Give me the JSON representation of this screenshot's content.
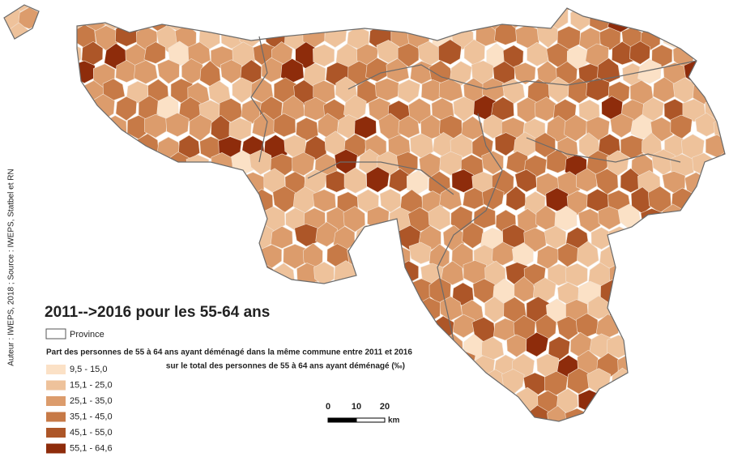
{
  "title": "2011-->2016 pour les 55-64 ans",
  "credit": "Auteur : IWEPS, 2018 ; Source : IWEPS, Statbel et RN",
  "legend": {
    "province": "Province",
    "description": [
      "Part des personnes de 55 à 64 ans ayant déménagé dans la même commune entre 2011 et 2016",
      "sur le total des personnes de 55 à 64 ans ayant déménagé (‰)"
    ],
    "classes": [
      {
        "label": "9,5 - 15,0",
        "color": "#fbe1c6"
      },
      {
        "label": "15,1 - 25,0",
        "color": "#eec29b"
      },
      {
        "label": "25,1 - 35,0",
        "color": "#dc9c6c"
      },
      {
        "label": "35,1 - 45,0",
        "color": "#c77a47"
      },
      {
        "label": "45,1 - 55,0",
        "color": "#ad5628"
      },
      {
        "label": "55,1 - 64,6",
        "color": "#8e2c0b"
      }
    ]
  },
  "scale_bar": {
    "labels": [
      "0",
      "10",
      "20"
    ],
    "unit": "km"
  }
}
